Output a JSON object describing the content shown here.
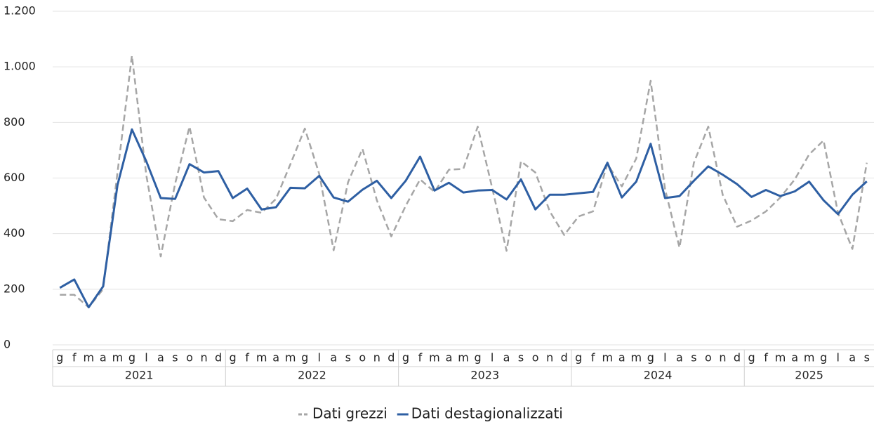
{
  "chart_data": {
    "type": "line",
    "categories": [
      "g",
      "f",
      "m",
      "a",
      "m",
      "g",
      "l",
      "a",
      "s",
      "o",
      "n",
      "d",
      "g",
      "f",
      "m",
      "a",
      "m",
      "g",
      "l",
      "a",
      "s",
      "o",
      "n",
      "d",
      "g",
      "f",
      "m",
      "a",
      "m",
      "g",
      "l",
      "a",
      "s",
      "o",
      "n",
      "d",
      "g",
      "f",
      "m",
      "a",
      "m",
      "g",
      "l",
      "a",
      "s",
      "o",
      "n",
      "d",
      "g",
      "f",
      "m",
      "a",
      "m",
      "g",
      "l",
      "a",
      "s"
    ],
    "years": [
      "2021",
      "2022",
      "2023",
      "2024",
      "2025"
    ],
    "series": [
      {
        "name": "Dati grezzi",
        "color": "#a6a6a6",
        "dashed": true,
        "values": [
          180,
          180,
          135,
          200,
          620,
          1040,
          610,
          318,
          580,
          785,
          530,
          452,
          445,
          485,
          475,
          525,
          650,
          778,
          615,
          340,
          585,
          705,
          520,
          390,
          500,
          595,
          550,
          630,
          633,
          785,
          565,
          338,
          660,
          620,
          480,
          395,
          462,
          480,
          650,
          570,
          670,
          950,
          560,
          350,
          655,
          785,
          540,
          425,
          447,
          480,
          530,
          595,
          685,
          735,
          475,
          345,
          655
        ]
      },
      {
        "name": "Dati destagionalizzati",
        "color": "#2e5fa3",
        "dashed": false,
        "values": [
          205,
          235,
          135,
          210,
          575,
          775,
          660,
          528,
          525,
          650,
          620,
          625,
          528,
          562,
          487,
          495,
          565,
          563,
          608,
          530,
          515,
          558,
          590,
          528,
          590,
          677,
          555,
          583,
          548,
          555,
          557,
          523,
          595,
          487,
          540,
          540,
          545,
          550,
          655,
          530,
          587,
          723,
          528,
          535,
          590,
          642,
          612,
          578,
          532,
          557,
          535,
          552,
          587,
          520,
          470,
          540,
          588
        ]
      }
    ],
    "ylim": [
      0,
      1200
    ],
    "yticks": [
      0,
      200,
      400,
      600,
      800,
      {
        "value": 1000,
        "label": "1.000"
      },
      {
        "value": 1200,
        "label": "1.200"
      }
    ],
    "grid": true,
    "legend": "bottom"
  }
}
